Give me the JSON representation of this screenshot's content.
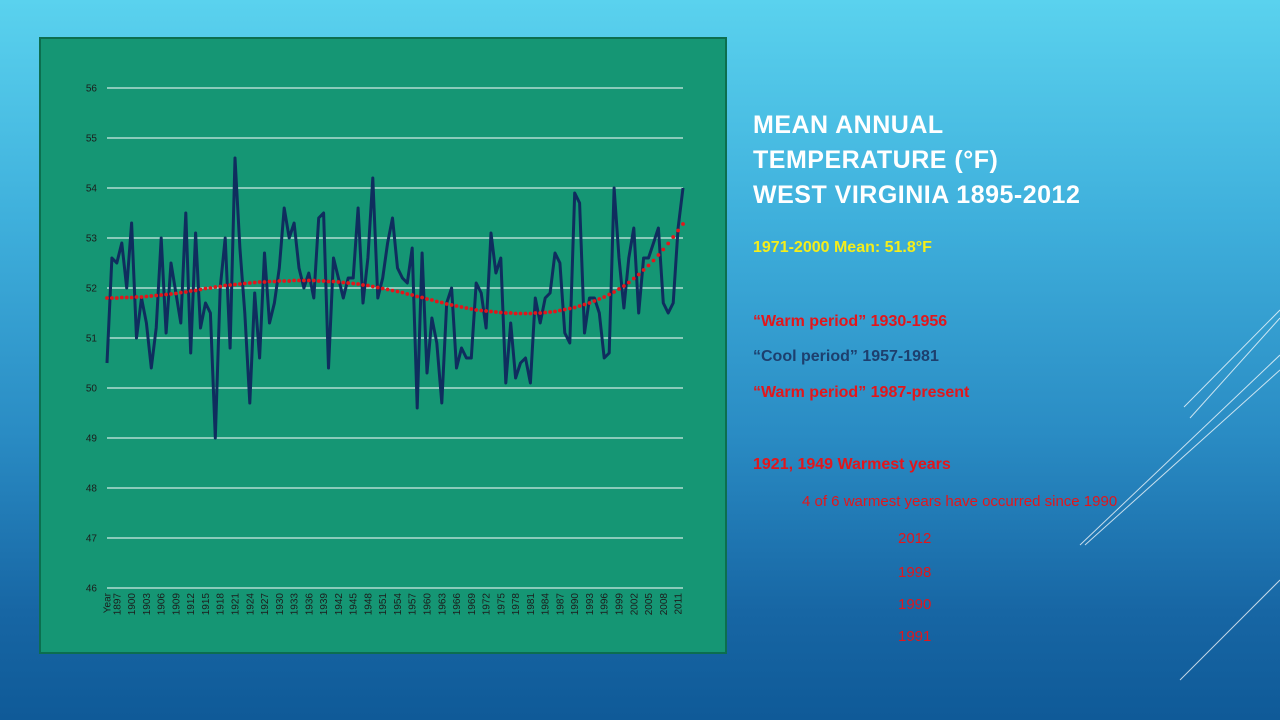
{
  "title_lines": [
    "Mean Annual",
    "Temperature (°F)",
    "West Virginia 1895-2012"
  ],
  "notes": {
    "mean": "1971-2000 Mean: 51.8°F",
    "warm1": "“Warm period” 1930-1956",
    "cool": "“Cool period” 1957-1981",
    "warm2": "“Warm period” 1987-present",
    "warmest": "1921, 1949 Warmest years",
    "recent": "4 of 6 warmest years have occurred since 1990",
    "years": [
      "2012",
      "1998",
      "1990",
      "1991"
    ]
  },
  "colors": {
    "chart_background": "#159674",
    "series_line": "#0f2d5e",
    "trend_line": "#e3161b",
    "mean_text": "#f5ee1a",
    "warm_text": "#e3161b",
    "cool_text": "#1d3f6e"
  },
  "chart_data": {
    "type": "line",
    "ylim": [
      46,
      56
    ],
    "yticks": [
      46,
      47,
      48,
      49,
      50,
      51,
      52,
      53,
      54,
      55,
      56
    ],
    "grid": "horizontal",
    "first_category_label": "Year",
    "x_tick_labels": [
      "1897",
      "1900",
      "1903",
      "1906",
      "1909",
      "1912",
      "1915",
      "1918",
      "1921",
      "1924",
      "1927",
      "1930",
      "1933",
      "1936",
      "1939",
      "1942",
      "1945",
      "1948",
      "1951",
      "1954",
      "1957",
      "1960",
      "1963",
      "1966",
      "1969",
      "1972",
      "1975",
      "1978",
      "1981",
      "1984",
      "1987",
      "1990",
      "1993",
      "1996",
      "1999",
      "2002",
      "2005",
      "2008",
      "2011"
    ],
    "x": [
      1895,
      1896,
      1897,
      1898,
      1899,
      1900,
      1901,
      1902,
      1903,
      1904,
      1905,
      1906,
      1907,
      1908,
      1909,
      1910,
      1911,
      1912,
      1913,
      1914,
      1915,
      1916,
      1917,
      1918,
      1919,
      1920,
      1921,
      1922,
      1923,
      1924,
      1925,
      1926,
      1927,
      1928,
      1929,
      1930,
      1931,
      1932,
      1933,
      1934,
      1935,
      1936,
      1937,
      1938,
      1939,
      1940,
      1941,
      1942,
      1943,
      1944,
      1945,
      1946,
      1947,
      1948,
      1949,
      1950,
      1951,
      1952,
      1953,
      1954,
      1955,
      1956,
      1957,
      1958,
      1959,
      1960,
      1961,
      1962,
      1963,
      1964,
      1965,
      1966,
      1967,
      1968,
      1969,
      1970,
      1971,
      1972,
      1973,
      1974,
      1975,
      1976,
      1977,
      1978,
      1979,
      1980,
      1981,
      1982,
      1983,
      1984,
      1985,
      1986,
      1987,
      1988,
      1989,
      1990,
      1991,
      1992,
      1993,
      1994,
      1995,
      1996,
      1997,
      1998,
      1999,
      2000,
      2001,
      2002,
      2003,
      2004,
      2005,
      2006,
      2007,
      2008,
      2009,
      2010,
      2011,
      2012
    ],
    "series": [
      {
        "values": [
          50.5,
          52.6,
          52.5,
          52.9,
          52.0,
          53.3,
          51.0,
          51.8,
          51.3,
          50.4,
          51.2,
          53.0,
          51.1,
          52.5,
          51.9,
          51.3,
          53.5,
          50.7,
          53.1,
          51.2,
          51.7,
          51.5,
          49.0,
          52.0,
          53.0,
          50.8,
          54.6,
          52.8,
          51.5,
          49.7,
          51.9,
          50.6,
          52.7,
          51.3,
          51.7,
          52.4,
          53.6,
          53.0,
          53.3,
          52.4,
          52.0,
          52.3,
          51.8,
          53.4,
          53.5,
          50.4,
          52.6,
          52.2,
          51.8,
          52.2,
          52.2,
          53.6,
          51.7,
          52.6,
          54.2,
          51.8,
          52.2,
          52.9,
          53.4,
          52.4,
          52.2,
          52.1,
          52.8,
          49.6,
          52.7,
          50.3,
          51.4,
          50.9,
          49.7,
          51.7,
          52.0,
          50.4,
          50.8,
          50.6,
          50.6,
          52.1,
          51.9,
          51.2,
          53.1,
          52.3,
          52.6,
          50.1,
          51.3,
          50.2,
          50.5,
          50.6,
          50.1,
          51.8,
          51.3,
          51.8,
          51.9,
          52.7,
          52.5,
          51.1,
          50.9,
          53.9,
          53.7,
          51.1,
          51.8,
          51.8,
          51.5,
          50.6,
          50.7,
          54.0,
          52.6,
          51.6,
          52.6,
          53.2,
          51.5,
          52.6,
          52.6,
          52.9,
          53.2,
          51.7,
          51.5,
          51.7,
          53.2,
          54.0
        ]
      },
      {
        "style": "dotted-trend",
        "values": [
          51.8,
          51.8,
          51.8,
          51.81,
          51.81,
          51.81,
          51.82,
          51.82,
          51.83,
          51.84,
          51.85,
          51.86,
          51.87,
          51.88,
          51.89,
          51.91,
          51.92,
          51.94,
          51.95,
          51.97,
          51.99,
          52.0,
          52.02,
          52.03,
          52.05,
          52.06,
          52.07,
          52.08,
          52.09,
          52.1,
          52.11,
          52.12,
          52.12,
          52.13,
          52.13,
          52.14,
          52.14,
          52.14,
          52.15,
          52.15,
          52.15,
          52.15,
          52.15,
          52.14,
          52.14,
          52.13,
          52.13,
          52.12,
          52.11,
          52.1,
          52.09,
          52.08,
          52.06,
          52.05,
          52.03,
          52.01,
          51.99,
          51.97,
          51.95,
          51.93,
          51.91,
          51.88,
          51.86,
          51.83,
          51.81,
          51.78,
          51.76,
          51.73,
          51.71,
          51.68,
          51.66,
          51.64,
          51.62,
          51.6,
          51.58,
          51.56,
          51.55,
          51.54,
          51.53,
          51.52,
          51.51,
          51.5,
          51.5,
          51.49,
          51.49,
          51.49,
          51.49,
          51.5,
          51.5,
          51.51,
          51.52,
          51.53,
          51.55,
          51.57,
          51.59,
          51.61,
          51.64,
          51.67,
          51.7,
          51.74,
          51.78,
          51.82,
          51.87,
          51.92,
          51.98,
          52.04,
          52.11,
          52.19,
          52.27,
          52.36,
          52.45,
          52.55,
          52.66,
          52.77,
          52.89,
          53.02,
          53.15,
          53.28
        ]
      }
    ]
  }
}
